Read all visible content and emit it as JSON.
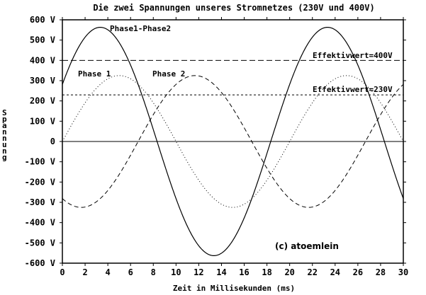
{
  "chart_data": {
    "type": "line",
    "title": "Die zwei Spannungen unseres Stromnetzes (230V und 400V)",
    "xlabel": "Zeit in Millisekunden (ms)",
    "ylabel": "Spannung",
    "xlim": [
      0,
      30
    ],
    "ylim": [
      -600,
      600
    ],
    "x_ticks": [
      0,
      2,
      4,
      6,
      8,
      10,
      12,
      14,
      16,
      18,
      20,
      22,
      24,
      26,
      28,
      30
    ],
    "x_tick_labels": [
      "0",
      "2",
      "4",
      "6",
      "8",
      "10",
      "12",
      "14",
      "16",
      "18",
      "20",
      "22",
      "24",
      "26",
      "28",
      "30"
    ],
    "y_ticks": [
      600,
      500,
      400,
      300,
      200,
      100,
      0,
      -100,
      -200,
      -300,
      -400,
      -500,
      -600
    ],
    "y_tick_labels": [
      "600 V",
      "500 V",
      "400 V",
      "300 V",
      "200 V",
      "100 V",
      "0",
      "-100 V",
      "-200 V",
      "-300 V",
      "-400 V",
      "-500 V",
      "-600 V"
    ],
    "frequency_hz": 50,
    "series": [
      {
        "name": "Phase 1",
        "style": "dotted",
        "amplitude_v": 325,
        "phase_deg": 0,
        "x": [
          0,
          5,
          10,
          15,
          20,
          25,
          30
        ],
        "values": [
          0,
          325,
          0,
          -325,
          0,
          325,
          0
        ]
      },
      {
        "name": "Phase 2",
        "style": "dashed",
        "amplitude_v": 325,
        "phase_deg": -120,
        "x": [
          0,
          1.67,
          6.67,
          11.67,
          16.67,
          21.67,
          26.67,
          30
        ],
        "values": [
          -281,
          -325,
          0,
          325,
          0,
          -325,
          0,
          281
        ]
      },
      {
        "name": "Phase1-Phase2",
        "style": "solid",
        "amplitude_v": 563,
        "phase_deg": 30,
        "x": [
          0,
          3.33,
          8.33,
          13.33,
          18.33,
          23.33,
          28.33,
          30
        ],
        "values": [
          281,
          563,
          0,
          -563,
          0,
          563,
          0,
          -281
        ]
      }
    ],
    "reference_lines": [
      {
        "label": "Effektivwert=400V",
        "value": 400,
        "style": "long-dashed"
      },
      {
        "label": "Effektivwert=230V",
        "value": 230,
        "style": "dashed"
      }
    ],
    "annotations": [
      "Phase 1",
      "Phase 2",
      "Phase1-Phase2",
      "Effektivwert=400V",
      "Effektivwert=230V"
    ],
    "copyright": "(c) atoemlein"
  }
}
